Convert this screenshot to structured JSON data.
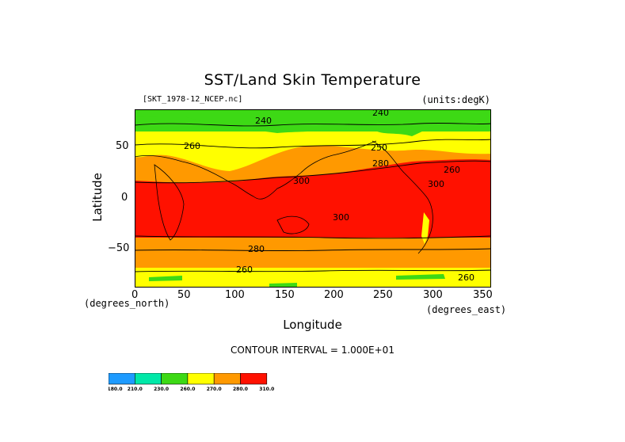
{
  "title": "SST/Land Skin Temperature",
  "file_label": "[SKT_1978-12_NCEP.nc]",
  "units_label": "(units:degK)",
  "y_axis": {
    "label": "Latitude",
    "ticks": [
      "50",
      "0",
      "−50"
    ],
    "units": "(degrees_north)"
  },
  "x_axis": {
    "label": "Longitude",
    "ticks": [
      "0",
      "50",
      "100",
      "150",
      "200",
      "250",
      "300",
      "350"
    ],
    "units": "(degrees_east)"
  },
  "contour_interval": "CONTOUR INTERVAL = 1.000E+01",
  "contour_labels": [
    "240",
    "240",
    "260",
    "250",
    "260",
    "280",
    "300",
    "300",
    "300",
    "280",
    "260",
    "260"
  ],
  "colorbar": {
    "colors": [
      "#1e9bff",
      "#00e8a8",
      "#3dd915",
      "#ffff00",
      "#ff9900",
      "#ff1100"
    ],
    "labels": [
      "180.0",
      "210.0",
      "230.0",
      "260.0",
      "270.0",
      "280.0",
      "310.0"
    ]
  },
  "map_colors": {
    "warm": "#ff1100",
    "mid": "#ff9900",
    "cool": "#ffff00",
    "cold": "#3dd915",
    "frozen": "#00e8a8"
  },
  "chart_data": {
    "type": "heatmap",
    "title": "SST/Land Skin Temperature",
    "xlabel": "Longitude",
    "ylabel": "Latitude",
    "xlim": [
      0,
      360
    ],
    "ylim": [
      -90,
      90
    ],
    "x_ticks": [
      0,
      50,
      100,
      150,
      200,
      250,
      300,
      350
    ],
    "y_ticks": [
      -50,
      0,
      50
    ],
    "units": "degK",
    "levels": [
      180,
      210,
      230,
      260,
      270,
      280,
      310
    ],
    "contour_interval": 10,
    "zonal_bands": [
      {
        "lat_range": [
          60,
          90
        ],
        "approx_value": 235
      },
      {
        "lat_range": [
          40,
          60
        ],
        "approx_value": 265
      },
      {
        "lat_range": [
          30,
          40
        ],
        "approx_value": 280
      },
      {
        "lat_range": [
          -40,
          30
        ],
        "approx_value": 300
      },
      {
        "lat_range": [
          -60,
          -40
        ],
        "approx_value": 280
      },
      {
        "lat_range": [
          -75,
          -60
        ],
        "approx_value": 270
      },
      {
        "lat_range": [
          -90,
          -75
        ],
        "approx_value": 255
      }
    ]
  }
}
